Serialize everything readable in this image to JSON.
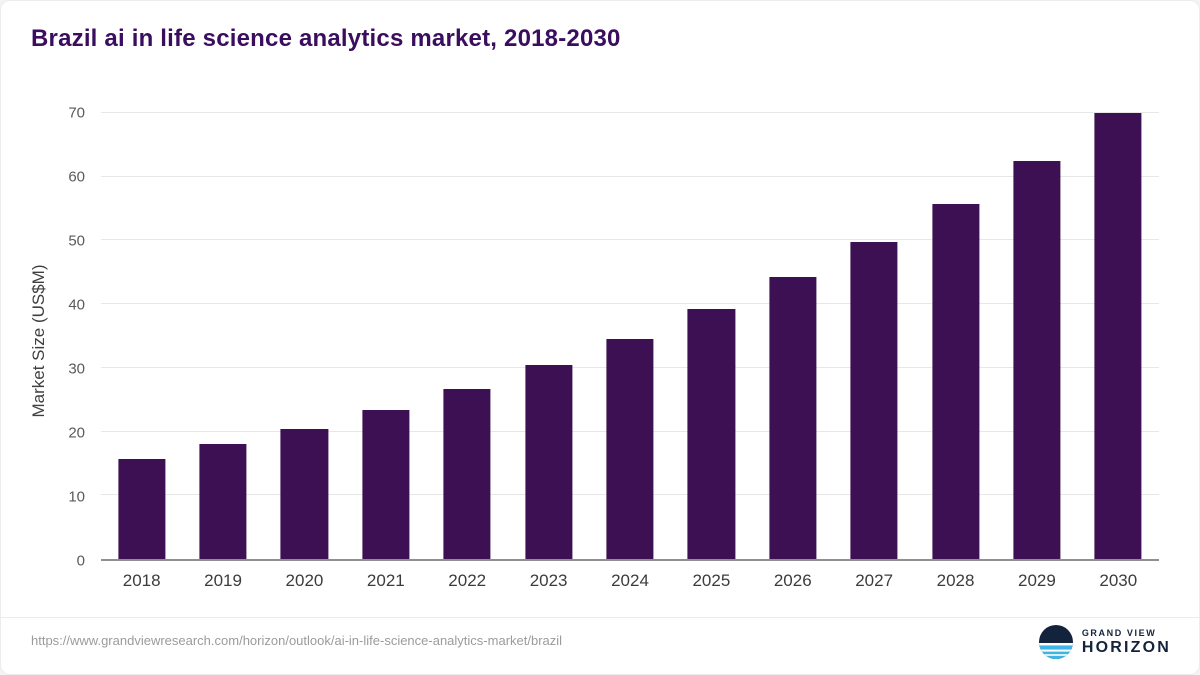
{
  "header": {
    "title": "Brazil ai in life science analytics market, 2018-2030"
  },
  "chart_data": {
    "type": "bar",
    "title": "Brazil ai in life science analytics market, 2018-2030",
    "categories": [
      "2018",
      "2019",
      "2020",
      "2021",
      "2022",
      "2023",
      "2024",
      "2025",
      "2026",
      "2027",
      "2028",
      "2029",
      "2030"
    ],
    "values": [
      15.7,
      18.0,
      20.4,
      23.4,
      26.7,
      30.5,
      34.5,
      39.2,
      44.2,
      49.7,
      55.7,
      62.5,
      70.0
    ],
    "xlabel": "",
    "ylabel": "Market Size (US$M)",
    "ylim": [
      0,
      70
    ],
    "yticks": [
      0,
      10,
      20,
      30,
      40,
      50,
      60,
      70
    ],
    "grid": true,
    "legend": "none",
    "bar_color": "#3c1053"
  },
  "footer": {
    "source_url": "https://www.grandviewresearch.com/horizon/outlook/ai-in-life-science-analytics-market/brazil",
    "brand_top": "GRAND VIEW",
    "brand_bottom": "HORIZON"
  },
  "colors": {
    "title": "#3a0d5e",
    "bar": "#3c1053",
    "axis_text": "#5a5a5a",
    "gridline": "#e7e7e7",
    "baseline": "#8f8f8f",
    "source_text": "#9b9b9b",
    "brand_navy": "#14233c",
    "brand_blue": "#3db5e6"
  }
}
